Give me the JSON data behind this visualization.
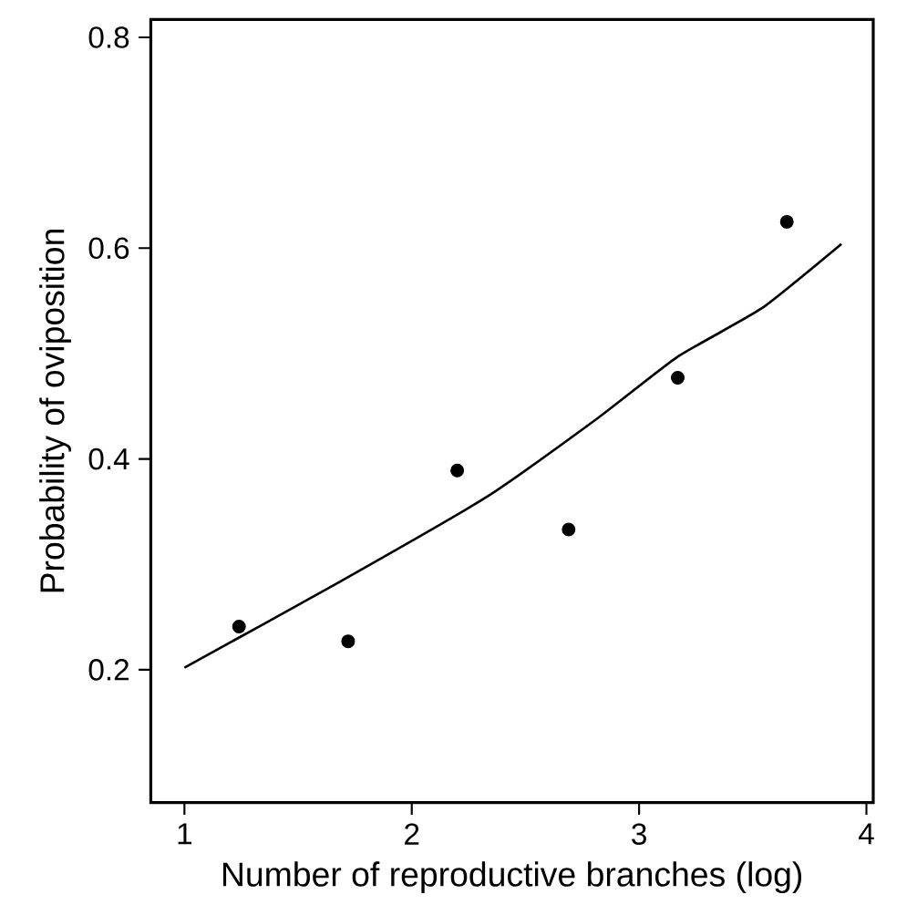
{
  "chart_data": {
    "type": "scatter",
    "xlabel": "Number of reproductive branches (log)",
    "ylabel": "Probability of oviposition",
    "xlim": [
      0.852,
      4.03
    ],
    "ylim": [
      0.074,
      0.817
    ],
    "xticks": [
      1,
      2,
      3,
      4
    ],
    "yticks": [
      0.2,
      0.4,
      0.6,
      0.8
    ],
    "grid": false,
    "series": [
      {
        "marker": "circle",
        "color": "#000000",
        "x": [
          1.24,
          1.72,
          2.2,
          2.69,
          3.17,
          3.65
        ],
        "values": [
          0.241,
          0.227,
          0.389,
          0.333,
          0.477,
          0.625
        ]
      },
      {
        "type": "line",
        "color": "#000000",
        "marker": "none",
        "line_style": "solid",
        "x": [
          1.0,
          1.68,
          2.33,
          2.82,
          3.17,
          3.54,
          3.89
        ],
        "values": [
          0.202,
          0.283,
          0.364,
          0.439,
          0.497,
          0.543,
          0.604
        ]
      }
    ]
  }
}
